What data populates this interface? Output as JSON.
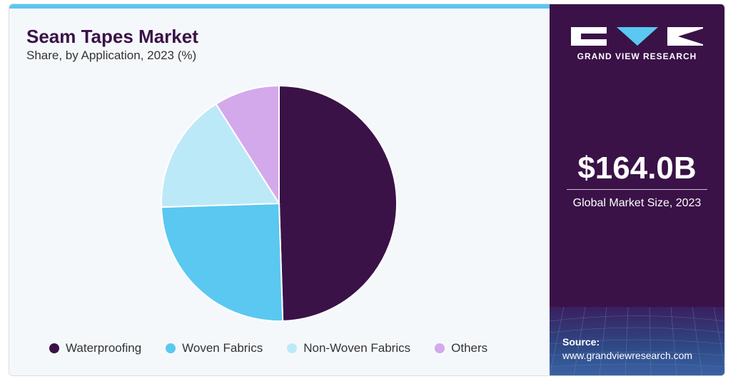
{
  "chart": {
    "title": "Seam Tapes Market",
    "subtitle": "Share, by Application, 2023 (%)"
  },
  "chart_data": {
    "type": "pie",
    "title": "Seam Tapes Market",
    "subtitle": "Share, by Application, 2023 (%)",
    "categories": [
      "Waterproofing",
      "Woven Fabrics",
      "Non-Woven Fabrics",
      "Others"
    ],
    "values": [
      49.5,
      25.0,
      16.5,
      9.0
    ],
    "colors": [
      "#3a1247",
      "#5ac8f0",
      "#bce9f7",
      "#d3a9eb"
    ],
    "start_angle": "12 o'clock, clockwise",
    "legend": "bottom"
  },
  "legend": {
    "items": [
      {
        "label": "Waterproofing",
        "color": "#3a1247"
      },
      {
        "label": "Woven Fabrics",
        "color": "#5ac8f0"
      },
      {
        "label": "Non-Woven Fabrics",
        "color": "#bce9f7"
      },
      {
        "label": "Others",
        "color": "#d3a9eb"
      }
    ]
  },
  "sidebar": {
    "logo_text": "GRAND VIEW RESEARCH",
    "market_size": "$164.0B",
    "market_size_label": "Global Market Size, 2023",
    "source_label": "Source:",
    "source_url": "www.grandviewresearch.com"
  },
  "colors": {
    "brand_dark": "#3a1247",
    "accent": "#5ac8f0"
  }
}
